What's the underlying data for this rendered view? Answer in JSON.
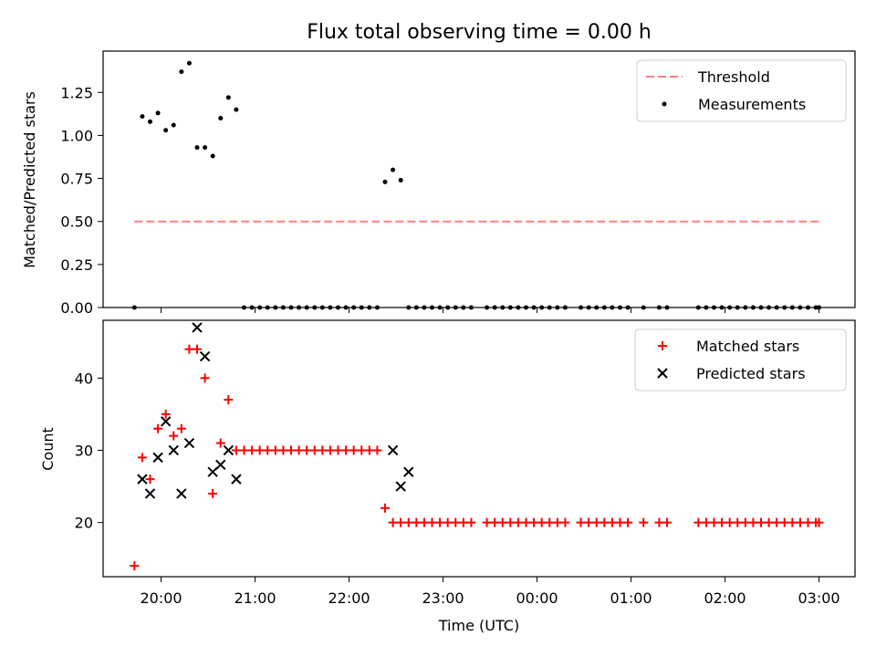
{
  "chart_data": [
    {
      "type": "scatter",
      "title": "Flux total observing time = 0.00 h",
      "ylabel": "Matched/Predicted stars",
      "xlabel": "",
      "ylim": [
        0,
        1.49
      ],
      "yticks": [
        "0.00",
        "0.25",
        "0.50",
        "0.75",
        "1.00",
        "1.25"
      ],
      "legend_position": "top-right",
      "threshold": {
        "name": "Threshold",
        "value": 0.5,
        "color": "#ff7f7f",
        "style": "dashed",
        "x_range": [
          "19:43",
          "03:00"
        ]
      },
      "series": [
        {
          "name": "Measurements",
          "color": "#000000",
          "marker": "dot",
          "x": [
            "19:43",
            "19:48",
            "19:53",
            "19:58",
            "20:03",
            "20:08",
            "20:13",
            "20:18",
            "20:23",
            "20:28",
            "20:33",
            "20:38",
            "20:43",
            "20:48",
            "20:53",
            "20:58",
            "21:03",
            "21:08",
            "21:13",
            "21:18",
            "21:23",
            "21:28",
            "21:33",
            "21:38",
            "21:43",
            "21:48",
            "21:53",
            "21:58",
            "22:03",
            "22:08",
            "22:13",
            "22:18",
            "22:23",
            "22:28",
            "22:33",
            "22:38",
            "22:43",
            "22:48",
            "22:53",
            "22:58",
            "23:03",
            "23:08",
            "23:13",
            "23:18",
            "23:28",
            "23:33",
            "23:38",
            "23:43",
            "23:48",
            "23:53",
            "23:58",
            "00:03",
            "00:08",
            "00:13",
            "00:18",
            "00:28",
            "00:33",
            "00:38",
            "00:43",
            "00:48",
            "00:53",
            "00:58",
            "01:08",
            "01:18",
            "01:23",
            "01:43",
            "01:48",
            "01:53",
            "01:58",
            "02:03",
            "02:08",
            "02:13",
            "02:18",
            "02:23",
            "02:28",
            "02:33",
            "02:38",
            "02:43",
            "02:48",
            "02:53",
            "02:58",
            "03:00"
          ],
          "y": [
            0.0,
            1.11,
            1.08,
            1.13,
            1.03,
            1.06,
            1.37,
            1.42,
            0.93,
            0.93,
            0.88,
            1.1,
            1.22,
            1.15,
            0.0,
            0.0,
            0.0,
            0.0,
            0.0,
            0.0,
            0.0,
            0.0,
            0.0,
            0.0,
            0.0,
            0.0,
            0.0,
            0.0,
            0.0,
            0.0,
            0.0,
            0.0,
            0.73,
            0.8,
            0.74,
            0.0,
            0.0,
            0.0,
            0.0,
            0.0,
            0.0,
            0.0,
            0.0,
            0.0,
            0.0,
            0.0,
            0.0,
            0.0,
            0.0,
            0.0,
            0.0,
            0.0,
            0.0,
            0.0,
            0.0,
            0.0,
            0.0,
            0.0,
            0.0,
            0.0,
            0.0,
            0.0,
            0.0,
            0.0,
            0.0,
            0.0,
            0.0,
            0.0,
            0.0,
            0.0,
            0.0,
            0.0,
            0.0,
            0.0,
            0.0,
            0.0,
            0.0,
            0.0,
            0.0,
            0.0,
            0.0,
            0.0
          ]
        }
      ]
    },
    {
      "type": "scatter",
      "title": "",
      "ylabel": "Count",
      "xlabel": "Time (UTC)",
      "ylim": [
        12.5,
        48
      ],
      "yticks": [
        "20",
        "30",
        "40"
      ],
      "xlim": [
        "19:23",
        "03:23"
      ],
      "xticks": [
        "20:00",
        "21:00",
        "22:00",
        "23:00",
        "00:00",
        "01:00",
        "02:00",
        "03:00"
      ],
      "legend_position": "top-right",
      "series": [
        {
          "name": "Matched stars",
          "color": "#ff0000",
          "marker": "plus",
          "x": [
            "19:43",
            "19:48",
            "19:53",
            "19:58",
            "20:03",
            "20:08",
            "20:13",
            "20:18",
            "20:23",
            "20:28",
            "20:33",
            "20:38",
            "20:43",
            "20:48",
            "20:53",
            "20:58",
            "21:03",
            "21:08",
            "21:13",
            "21:18",
            "21:23",
            "21:28",
            "21:33",
            "21:38",
            "21:43",
            "21:48",
            "21:53",
            "21:58",
            "22:03",
            "22:08",
            "22:13",
            "22:18",
            "22:23",
            "22:28",
            "22:33",
            "22:38",
            "22:43",
            "22:48",
            "22:53",
            "22:58",
            "23:03",
            "23:08",
            "23:13",
            "23:18",
            "23:28",
            "23:33",
            "23:38",
            "23:43",
            "23:48",
            "23:53",
            "23:58",
            "00:03",
            "00:08",
            "00:13",
            "00:18",
            "00:28",
            "00:33",
            "00:38",
            "00:43",
            "00:48",
            "00:53",
            "00:58",
            "01:08",
            "01:18",
            "01:23",
            "01:43",
            "01:48",
            "01:53",
            "01:58",
            "02:03",
            "02:08",
            "02:13",
            "02:18",
            "02:23",
            "02:28",
            "02:33",
            "02:38",
            "02:43",
            "02:48",
            "02:53",
            "02:58",
            "03:00"
          ],
          "y": [
            14,
            29,
            26,
            33,
            35,
            32,
            33,
            44,
            44,
            40,
            24,
            31,
            37,
            30,
            30,
            30,
            30,
            30,
            30,
            30,
            30,
            30,
            30,
            30,
            30,
            30,
            30,
            30,
            30,
            30,
            30,
            30,
            22,
            20,
            20,
            20,
            20,
            20,
            20,
            20,
            20,
            20,
            20,
            20,
            20,
            20,
            20,
            20,
            20,
            20,
            20,
            20,
            20,
            20,
            20,
            20,
            20,
            20,
            20,
            20,
            20,
            20,
            20,
            20,
            20,
            20,
            20,
            20,
            20,
            20,
            20,
            20,
            20,
            20,
            20,
            20,
            20,
            20,
            20,
            20,
            20,
            20
          ]
        },
        {
          "name": "Predicted stars",
          "color": "#000000",
          "marker": "x",
          "x": [
            "19:48",
            "19:53",
            "19:58",
            "20:03",
            "20:08",
            "20:13",
            "20:18",
            "20:23",
            "20:28",
            "20:33",
            "20:38",
            "20:43",
            "20:48",
            "22:28",
            "22:33",
            "22:38"
          ],
          "y": [
            26,
            24,
            29,
            34,
            30,
            24,
            31,
            47,
            43,
            27,
            28,
            30,
            26,
            30,
            25,
            27
          ]
        }
      ]
    }
  ]
}
